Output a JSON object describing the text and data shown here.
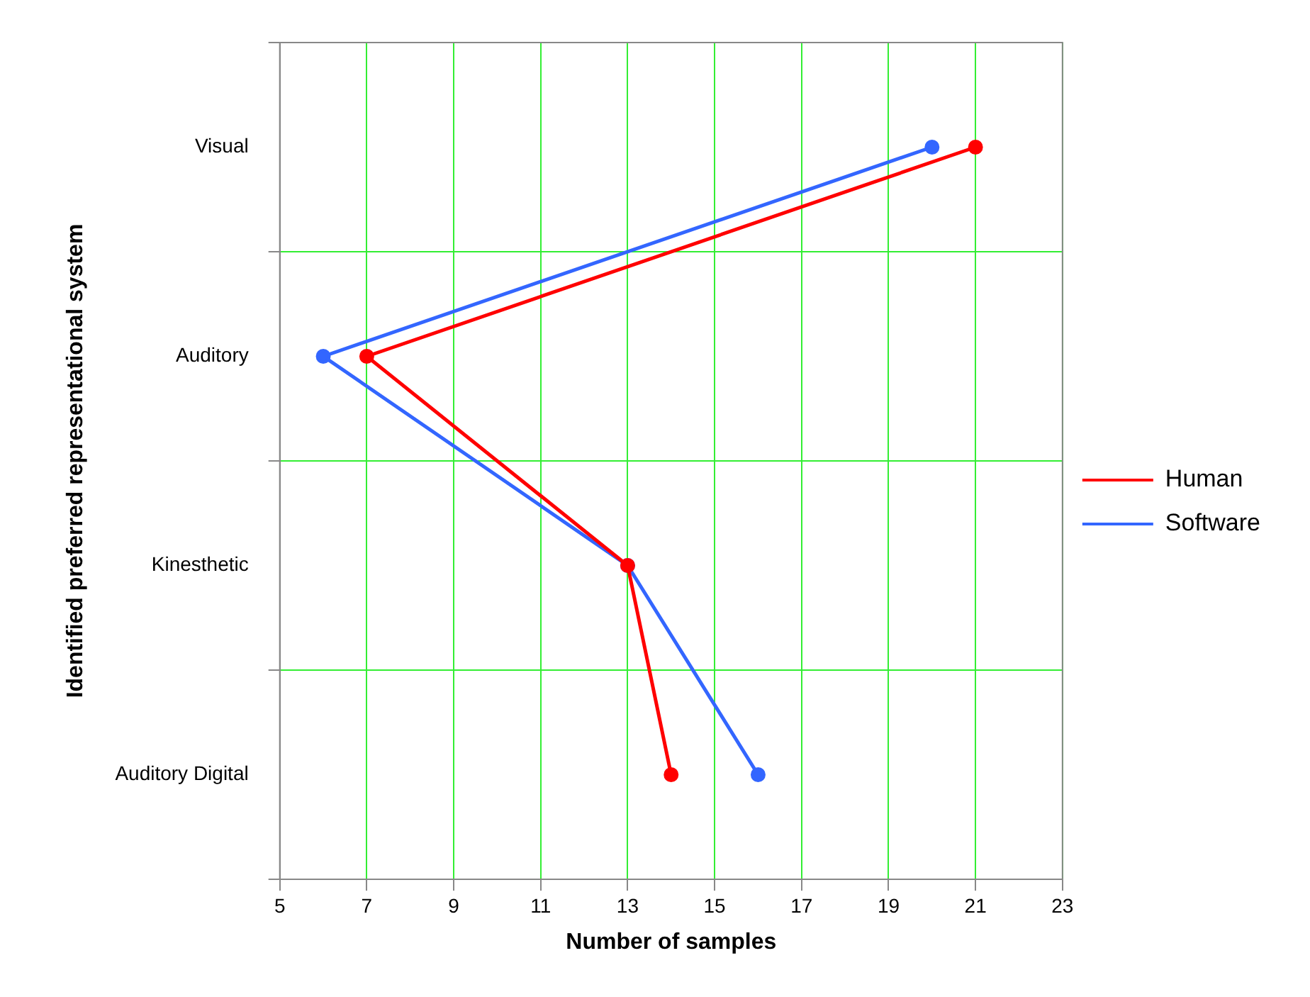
{
  "chart_data": {
    "type": "line",
    "orientation": "horizontal",
    "xlabel": "Number of samples",
    "ylabel": "Identified preferred representational system",
    "categories": [
      "Visual",
      "Auditory",
      "Kinesthetic",
      "Auditory Digital"
    ],
    "series": [
      {
        "name": "Human",
        "color": "#ff0000",
        "values": [
          21,
          7,
          13,
          14
        ]
      },
      {
        "name": "Software",
        "color": "#3366ff",
        "values": [
          20,
          6,
          13,
          16
        ]
      }
    ],
    "xlim": [
      5,
      23
    ],
    "xticks": [
      5,
      7,
      9,
      11,
      13,
      15,
      17,
      19,
      21,
      23
    ],
    "grid": true,
    "legend": "right",
    "marker": "circle",
    "line_style": "solid"
  }
}
